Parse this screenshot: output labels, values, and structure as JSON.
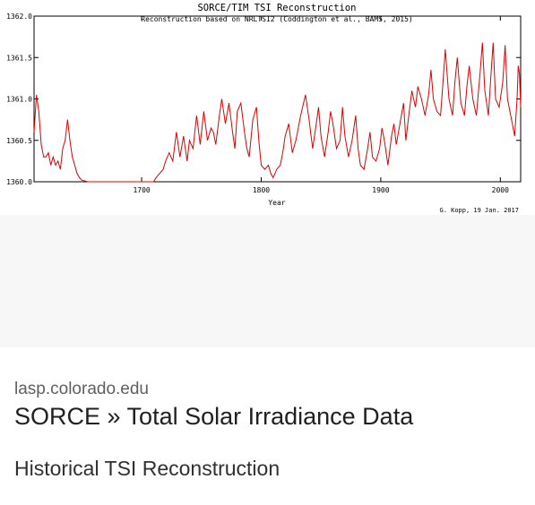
{
  "result": {
    "domain": "lasp.colorado.edu",
    "title": "SORCE » Total Solar Irradiance Data",
    "subtitle": "Historical TSI Reconstruction"
  },
  "chart_data": {
    "type": "line",
    "title": "SORCE/TIM TSI Reconstruction",
    "subtitle": "Reconstruction based on NRLTSI2 (Coddington et al., BAMS, 2015)",
    "xlabel": "Year",
    "ylabel": "",
    "credit": "G. Kopp, 19 Jan. 2017",
    "xlim": [
      1610,
      2017
    ],
    "ylim": [
      1360.0,
      1362.0
    ],
    "xticks": [
      1700,
      1800,
      1900,
      2000
    ],
    "xtick_labels": [
      "1700",
      "1800",
      "1900",
      "2000"
    ],
    "yticks": [
      1360.0,
      1360.5,
      1361.0,
      1361.5,
      1362.0
    ],
    "ytick_labels": [
      "1360.0",
      "1360.5",
      "1361.0",
      "1361.5",
      "1362.0"
    ],
    "grid": false,
    "color": "#dd0000",
    "series": [
      {
        "x": [
          1610,
          1612,
          1614,
          1616,
          1618,
          1620,
          1622,
          1624,
          1626,
          1628,
          1630,
          1632,
          1634,
          1636,
          1638,
          1640,
          1642,
          1644,
          1646,
          1648,
          1650,
          1655,
          1660,
          1670,
          1680,
          1690,
          1700,
          1710,
          1712,
          1715,
          1718,
          1720,
          1723,
          1726,
          1729,
          1732,
          1735,
          1738,
          1740,
          1743,
          1746,
          1749,
          1752,
          1755,
          1758,
          1760,
          1762,
          1765,
          1767,
          1770,
          1773,
          1776,
          1778,
          1780,
          1783,
          1786,
          1788,
          1790,
          1793,
          1796,
          1798,
          1800,
          1803,
          1806,
          1808,
          1810,
          1813,
          1816,
          1818,
          1820,
          1823,
          1826,
          1829,
          1833,
          1837,
          1840,
          1843,
          1846,
          1848,
          1850,
          1853,
          1856,
          1858,
          1860,
          1863,
          1866,
          1868,
          1870,
          1873,
          1876,
          1879,
          1881,
          1883,
          1886,
          1889,
          1891,
          1893,
          1896,
          1899,
          1901,
          1903,
          1906,
          1909,
          1911,
          1913,
          1916,
          1919,
          1921,
          1923,
          1926,
          1929,
          1931,
          1934,
          1937,
          1940,
          1942,
          1944,
          1947,
          1950,
          1952,
          1954,
          1957,
          1960,
          1962,
          1964,
          1967,
          1970,
          1972,
          1974,
          1977,
          1980,
          1983,
          1985,
          1987,
          1990,
          1992,
          1994,
          1996,
          1999,
          2002,
          2004,
          2006,
          2008,
          2010,
          2012,
          2014,
          2015,
          2016,
          2017
        ],
        "y": [
          1360.6,
          1361.05,
          1360.85,
          1360.45,
          1360.3,
          1360.3,
          1360.35,
          1360.2,
          1360.3,
          1360.2,
          1360.25,
          1360.15,
          1360.4,
          1360.5,
          1360.75,
          1360.5,
          1360.3,
          1360.2,
          1360.1,
          1360.05,
          1360.02,
          1360.0,
          1359.98,
          1359.98,
          1359.98,
          1359.99,
          1359.98,
          1360.0,
          1360.05,
          1360.1,
          1360.15,
          1360.25,
          1360.35,
          1360.25,
          1360.6,
          1360.3,
          1360.55,
          1360.25,
          1360.5,
          1360.4,
          1360.8,
          1360.45,
          1360.85,
          1360.5,
          1360.65,
          1360.6,
          1360.45,
          1360.8,
          1361.0,
          1360.7,
          1360.95,
          1360.6,
          1360.4,
          1360.85,
          1360.95,
          1360.6,
          1360.4,
          1360.3,
          1360.75,
          1360.9,
          1360.5,
          1360.2,
          1360.15,
          1360.2,
          1360.1,
          1360.05,
          1360.15,
          1360.2,
          1360.35,
          1360.55,
          1360.7,
          1360.35,
          1360.5,
          1360.8,
          1361.05,
          1360.75,
          1360.4,
          1360.7,
          1360.9,
          1360.55,
          1360.3,
          1360.6,
          1360.85,
          1360.7,
          1360.4,
          1360.5,
          1360.9,
          1360.55,
          1360.3,
          1360.5,
          1360.8,
          1360.4,
          1360.2,
          1360.15,
          1360.4,
          1360.6,
          1360.3,
          1360.25,
          1360.4,
          1360.65,
          1360.5,
          1360.2,
          1360.55,
          1360.7,
          1360.45,
          1360.7,
          1360.95,
          1360.5,
          1360.75,
          1361.1,
          1360.9,
          1361.15,
          1361.0,
          1360.8,
          1361.05,
          1361.35,
          1361.0,
          1360.85,
          1360.8,
          1361.2,
          1361.6,
          1361.0,
          1360.8,
          1361.2,
          1361.5,
          1360.95,
          1360.8,
          1361.15,
          1361.4,
          1361.0,
          1360.8,
          1361.3,
          1361.68,
          1361.1,
          1360.8,
          1361.25,
          1361.68,
          1361.0,
          1360.9,
          1361.2,
          1361.65,
          1361.0,
          1360.85,
          1360.7,
          1360.55,
          1361.0,
          1361.4,
          1361.3,
          1360.9
        ]
      }
    ]
  }
}
